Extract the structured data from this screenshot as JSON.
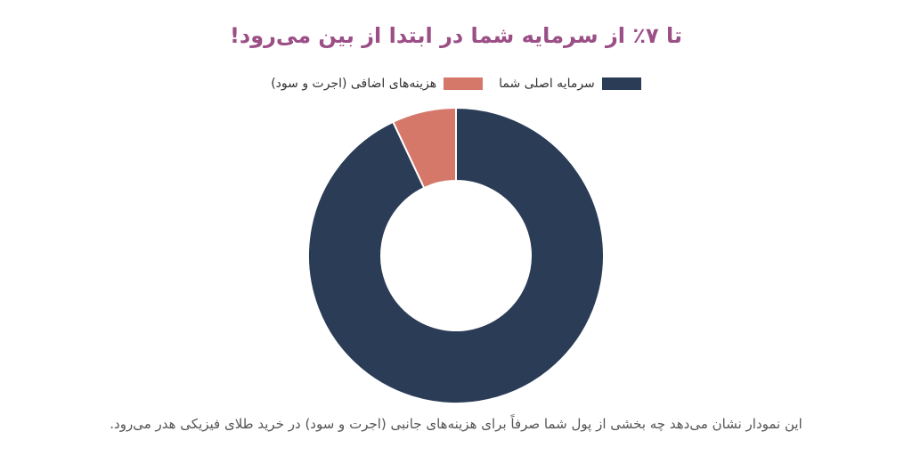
{
  "chart_data": {
    "type": "pie",
    "title": "تا ۷٪ از سرمایه شما در ابتدا از بین می‌رود!",
    "categories": [
      "سرمایه اصلی شما",
      "هزینه‌های اضافی (اجرت و سود)"
    ],
    "values": [
      93,
      7
    ],
    "colors": [
      "#2b3c57",
      "#d5786a"
    ],
    "legend_position": "top",
    "donut": true
  },
  "legend": [
    {
      "label": "سرمایه اصلی شما",
      "color": "#2b3c57"
    },
    {
      "label": "هزینه‌های اضافی (اجرت و سود)",
      "color": "#d5786a"
    }
  ],
  "caption": "این نمودار نشان می‌دهد چه بخشی از پول شما صرفاً برای هزینه‌های جانبی (اجرت و سود) در خرید طلای فیزیکی هدر می‌رود."
}
